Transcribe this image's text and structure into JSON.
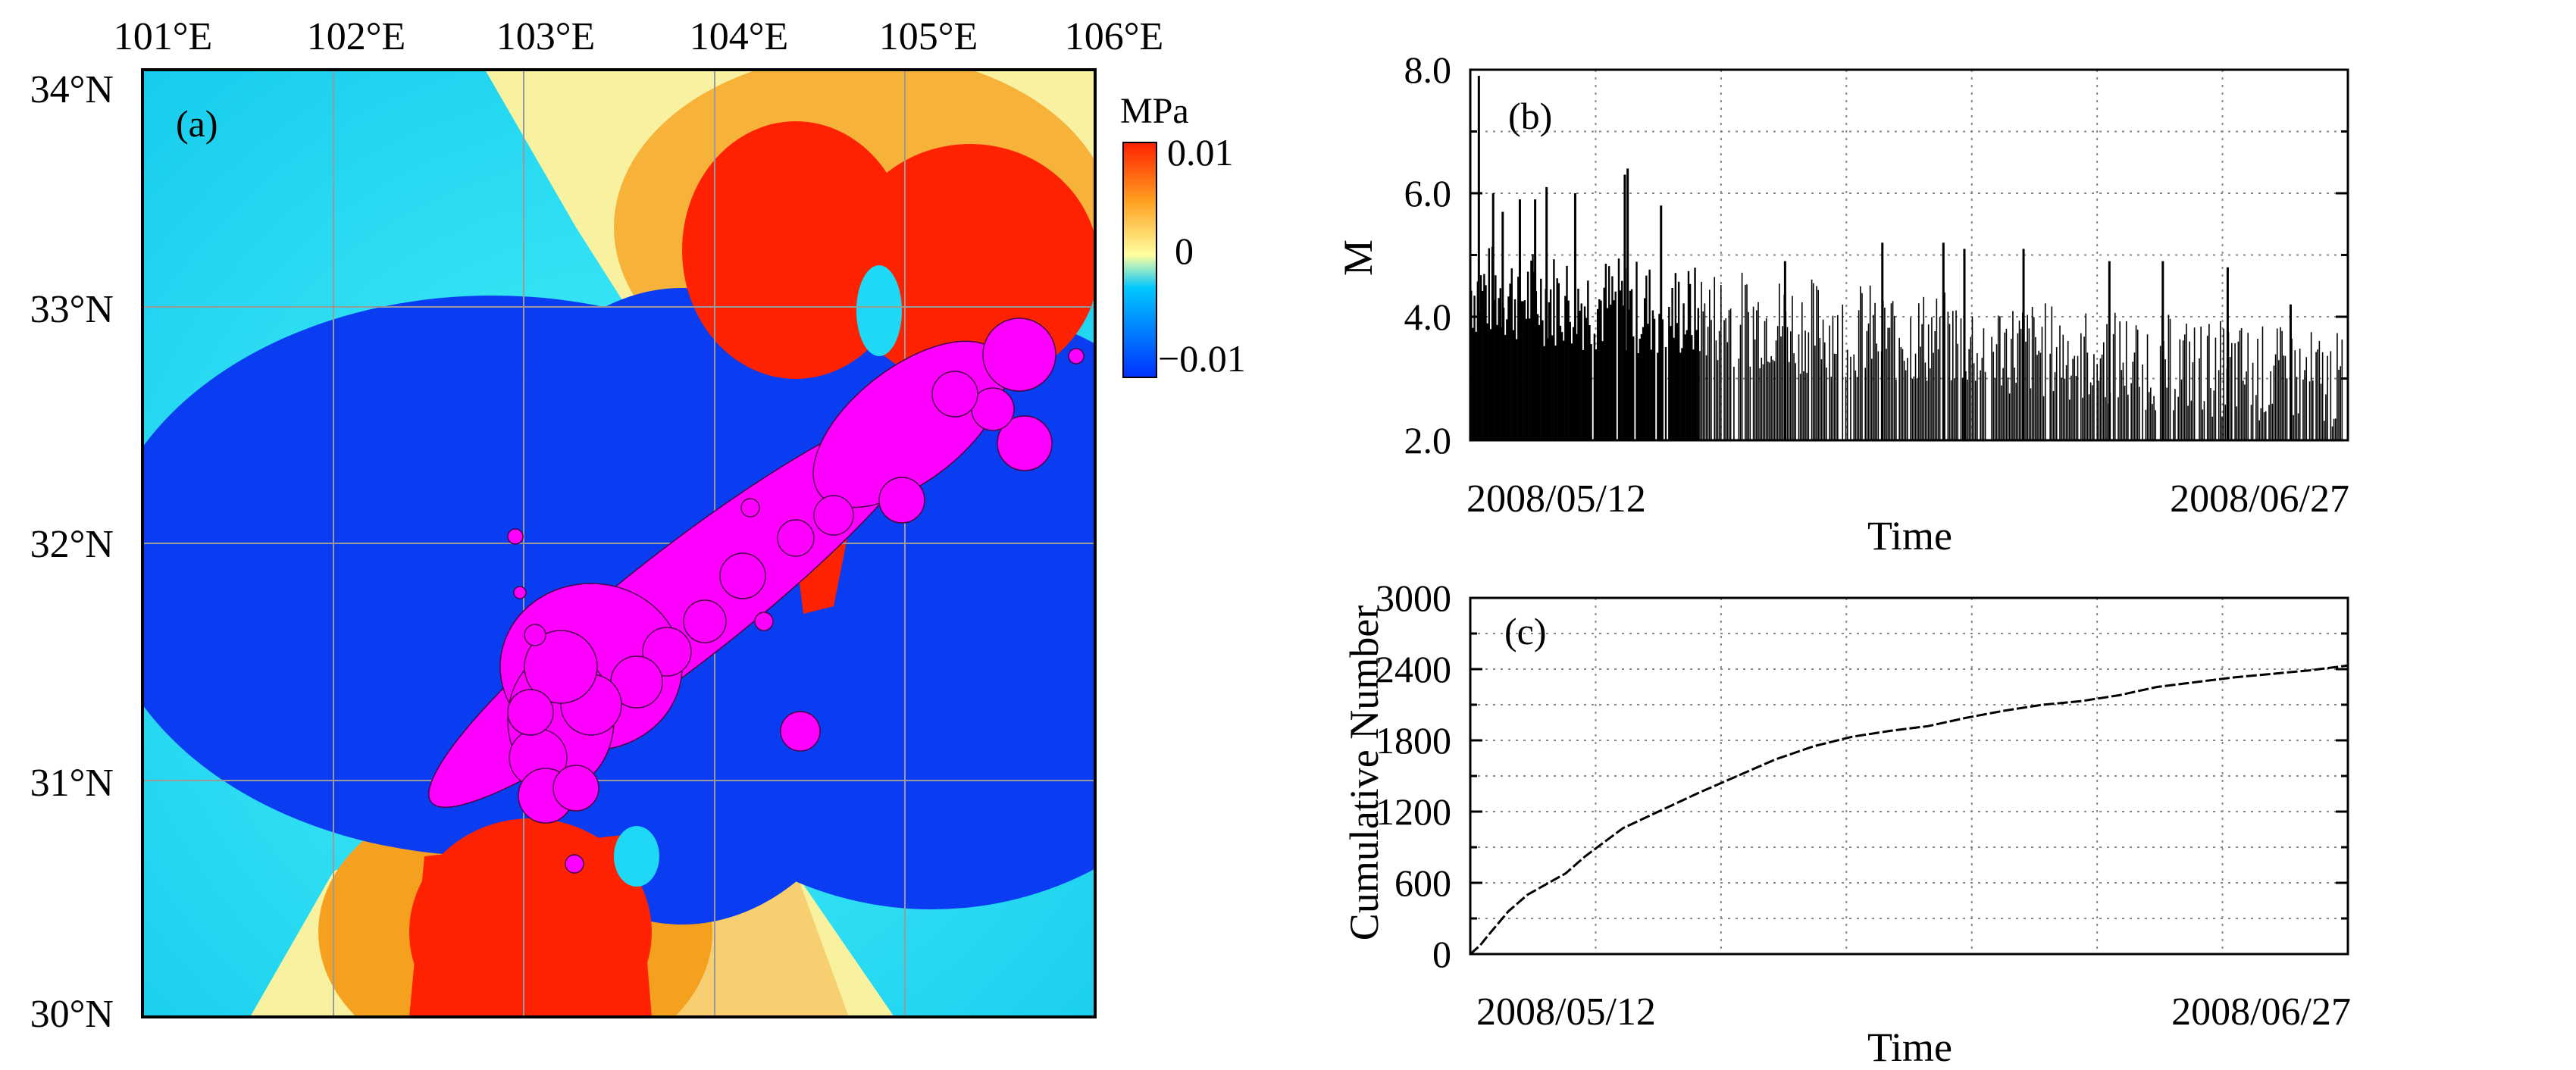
{
  "panel_a": {
    "label": "(a)",
    "lon_labels": [
      "101°E",
      "102°E",
      "103°E",
      "104°E",
      "105°E",
      "106°E"
    ],
    "lat_labels": [
      "34°N",
      "33°N",
      "32°N",
      "31°N",
      "30°N"
    ],
    "colorbar": {
      "unit": "MPa",
      "max_label": "0.01",
      "mid_label": "0",
      "min_label": "−0.01",
      "colors": [
        "#0030ff",
        "#00c8ff",
        "#ffffa0",
        "#ffa020",
        "#ff2000"
      ]
    },
    "colors": {
      "deep_blue": "#0a3cf2",
      "light_blue": "#1ed8f5",
      "pale_yellow": "#f8f4a0",
      "orange": "#f6a020",
      "red": "#ff2200",
      "events": "#ff00ff"
    }
  },
  "chart_data": [
    {
      "id": "b",
      "type": "bar",
      "label": "(b)",
      "xlabel": "Time",
      "ylabel": "M",
      "x_start_label": "2008/05/12",
      "x_end_label": "2008/06/27",
      "xlim_days": [
        0,
        46
      ],
      "ylim": [
        2.0,
        8.0
      ],
      "y_ticks": [
        "2.0",
        "4.0",
        "6.0",
        "8.0"
      ],
      "grid": true,
      "spikes": [
        {
          "day": 0.45,
          "m": 7.9
        },
        {
          "day": 1.2,
          "m": 6.0
        },
        {
          "day": 1.7,
          "m": 5.7
        },
        {
          "day": 2.6,
          "m": 5.9
        },
        {
          "day": 3.4,
          "m": 5.9
        },
        {
          "day": 4.0,
          "m": 6.1
        },
        {
          "day": 5.5,
          "m": 6.0
        },
        {
          "day": 8.1,
          "m": 6.3
        },
        {
          "day": 8.25,
          "m": 6.4
        },
        {
          "day": 10.0,
          "m": 5.8
        },
        {
          "day": 16.5,
          "m": 4.9
        },
        {
          "day": 21.6,
          "m": 5.2
        },
        {
          "day": 24.8,
          "m": 5.2
        },
        {
          "day": 25.9,
          "m": 5.1
        },
        {
          "day": 29.0,
          "m": 5.1
        },
        {
          "day": 33.5,
          "m": 4.9
        },
        {
          "day": 36.3,
          "m": 4.9
        },
        {
          "day": 39.7,
          "m": 4.8
        },
        {
          "day": 43.0,
          "m": 4.2
        }
      ]
    },
    {
      "id": "c",
      "type": "line",
      "label": "(c)",
      "xlabel": "Time",
      "ylabel": "Cumulative Number",
      "x_start_label": "2008/05/12",
      "x_end_label": "2008/06/27",
      "xlim_days": [
        0,
        46
      ],
      "ylim": [
        0,
        3000
      ],
      "y_ticks": [
        "0",
        "600",
        "1200",
        "1800",
        "2400",
        "3000"
      ],
      "grid": true,
      "x": [
        0,
        0.5,
        1,
        2,
        3,
        4,
        5,
        6,
        8,
        10,
        12,
        14,
        16,
        18,
        20,
        22,
        24,
        26,
        28,
        30,
        32,
        34,
        36,
        38,
        40,
        42,
        44,
        46
      ],
      "y": [
        0,
        70,
        170,
        360,
        500,
        590,
        680,
        820,
        1060,
        1210,
        1360,
        1500,
        1640,
        1750,
        1830,
        1880,
        1920,
        1990,
        2050,
        2100,
        2130,
        2180,
        2250,
        2290,
        2330,
        2360,
        2390,
        2430
      ]
    }
  ]
}
